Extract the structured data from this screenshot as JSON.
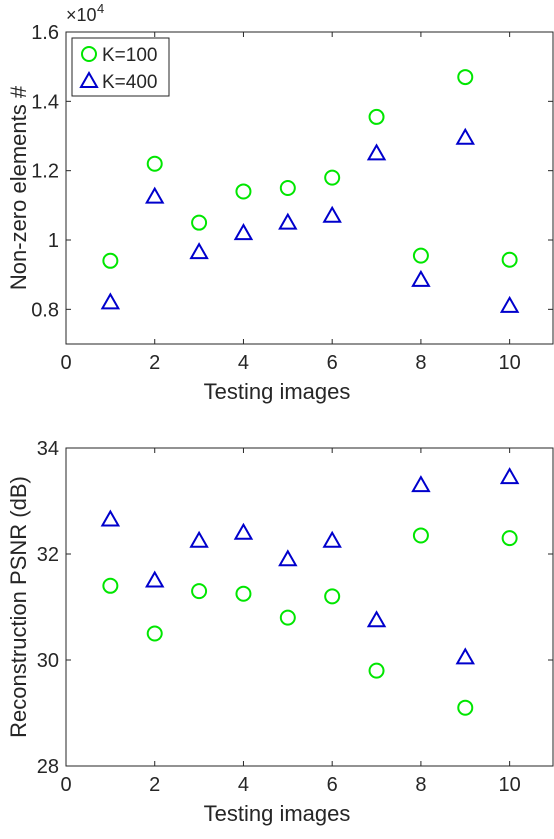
{
  "chart_data": [
    {
      "type": "scatter",
      "title": "",
      "xlabel": "Testing images",
      "ylabel": "Non-zero elements #",
      "exponent_label": "×10",
      "exponent_power": "4",
      "xlim": [
        0,
        11
      ],
      "ylim": [
        0.7,
        1.6
      ],
      "xticks": [
        0,
        2,
        4,
        6,
        8,
        10
      ],
      "yticks": [
        0.8,
        1,
        1.2,
        1.4,
        1.6
      ],
      "ytick_labels": [
        "0.8",
        "1",
        "1.2",
        "1.4",
        "1.6"
      ],
      "x": [
        1,
        2,
        3,
        4,
        5,
        6,
        7,
        8,
        9,
        10
      ],
      "series": [
        {
          "name": "K=100",
          "marker": "circle",
          "color": "#00e600",
          "values": [
            0.94,
            1.22,
            1.05,
            1.14,
            1.15,
            1.18,
            1.355,
            0.955,
            1.47,
            0.943
          ]
        },
        {
          "name": "K=400",
          "marker": "triangle",
          "color": "#0000cc",
          "values": [
            0.82,
            1.125,
            0.965,
            1.02,
            1.05,
            1.07,
            1.25,
            0.885,
            1.295,
            0.81
          ]
        }
      ],
      "legend": "top-left",
      "grid": false
    },
    {
      "type": "scatter",
      "title": "",
      "xlabel": "Testing images",
      "ylabel": "Reconstruction PSNR (dB)",
      "xlim": [
        0,
        11
      ],
      "ylim": [
        28,
        34
      ],
      "xticks": [
        0,
        2,
        4,
        6,
        8,
        10
      ],
      "yticks": [
        28,
        30,
        32,
        34
      ],
      "ytick_labels": [
        "28",
        "30",
        "32",
        "34"
      ],
      "x": [
        1,
        2,
        3,
        4,
        5,
        6,
        7,
        8,
        9,
        10
      ],
      "series": [
        {
          "name": "K=100",
          "marker": "circle",
          "color": "#00e600",
          "values": [
            31.4,
            30.5,
            31.3,
            31.25,
            30.8,
            31.2,
            29.8,
            32.35,
            29.1,
            32.3
          ]
        },
        {
          "name": "K=400",
          "marker": "triangle",
          "color": "#0000cc",
          "values": [
            32.65,
            31.5,
            32.25,
            32.4,
            31.9,
            32.25,
            30.75,
            33.3,
            30.05,
            33.45
          ]
        }
      ],
      "legend": "none",
      "grid": false
    }
  ]
}
